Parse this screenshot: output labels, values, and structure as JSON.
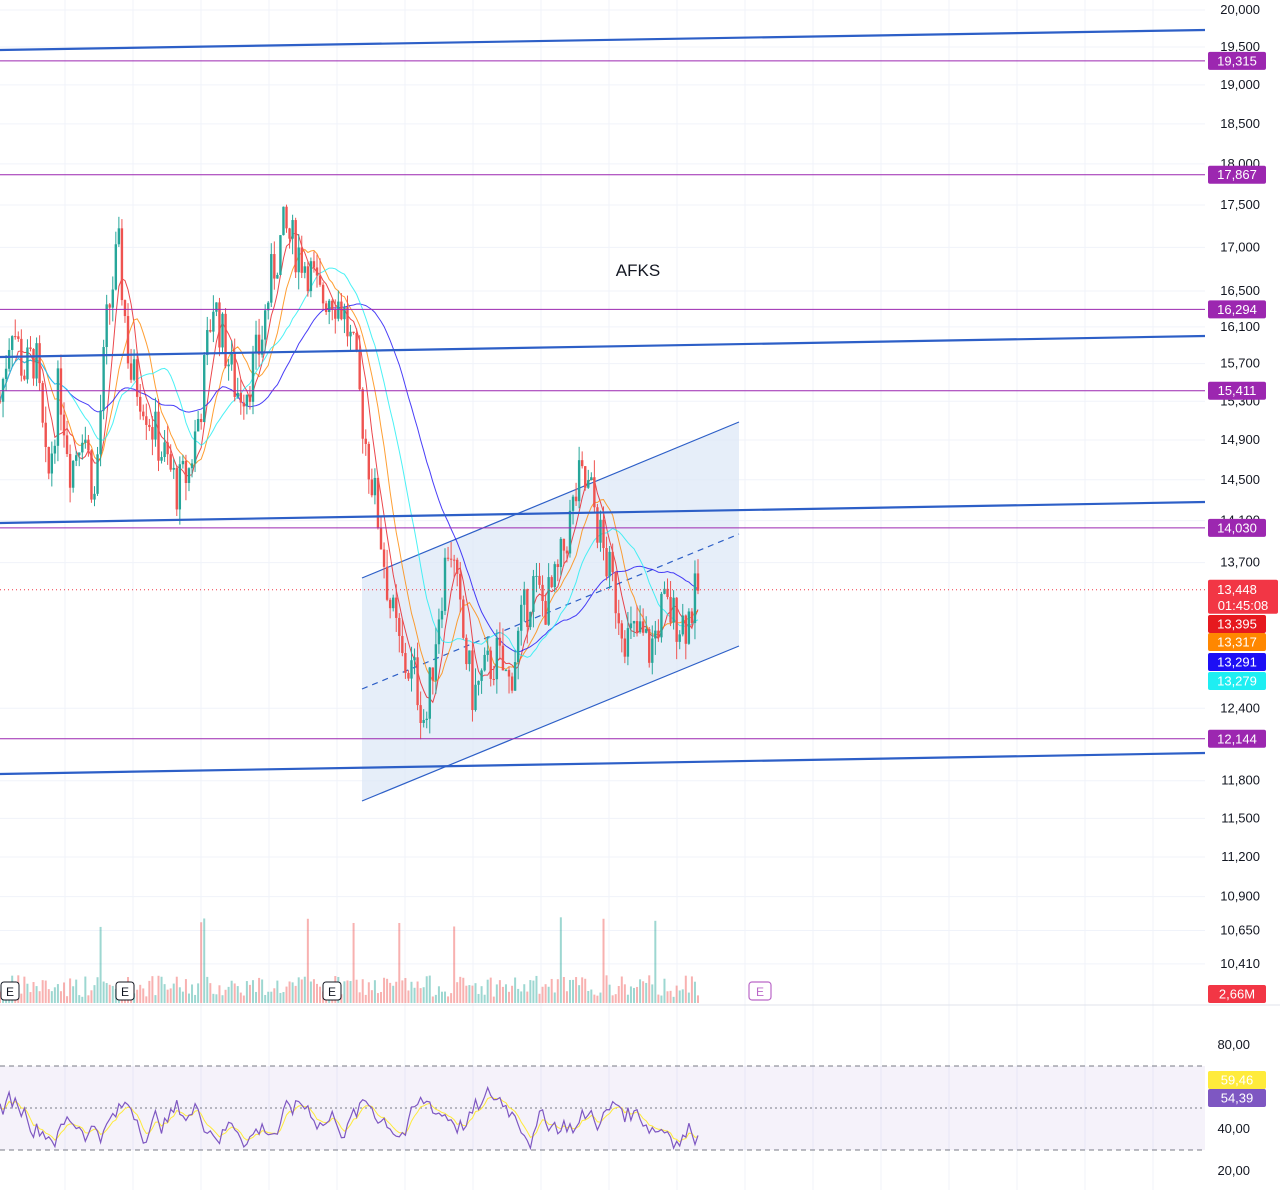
{
  "chart_data": [
    {
      "type": "candlestick",
      "title": "AFKS",
      "price_axis": {
        "scale": "log",
        "ticks": [
          "20,000",
          "19,500",
          "19,000",
          "18,500",
          "18,000",
          "17,500",
          "17,000",
          "16,500",
          "16,100",
          "15,700",
          "15,300",
          "14,900",
          "14,500",
          "14,100",
          "13,700",
          "12,400",
          "11,800",
          "11,500",
          "11,200",
          "10,900",
          "10,650",
          "10,410"
        ],
        "tick_values": [
          20000,
          19500,
          19000,
          18500,
          18000,
          17500,
          17000,
          16500,
          16100,
          15700,
          15300,
          14900,
          14500,
          14100,
          13700,
          12400,
          11800,
          11500,
          11200,
          10900,
          10650,
          10410
        ]
      },
      "price_series_approx": [
        15300,
        16200,
        15600,
        15800,
        14400,
        15500,
        14600,
        15100,
        14300,
        16100,
        17000,
        15600,
        15400,
        15000,
        14700,
        14400,
        14600,
        15300,
        16400,
        15900,
        15400,
        15500,
        15900,
        16700,
        17200,
        17000,
        16800,
        16400,
        16500,
        16300,
        15700,
        14800,
        14100,
        13300,
        12800,
        12700,
        12250,
        13200,
        13950,
        13100,
        12500,
        12700,
        12850,
        12600,
        13100,
        13500,
        13300,
        13500,
        14000,
        14500,
        14350,
        13800,
        13400,
        13000,
        13050,
        12900,
        13300,
        13200,
        13150,
        13448
      ],
      "horizontal_levels": [
        19315,
        17867,
        16294,
        15411,
        14030,
        12144
      ],
      "horizontal_level_labels": [
        "19,315",
        "17,867",
        "16,294",
        "15,411",
        "14,030",
        "12,144"
      ],
      "current_price": {
        "value": 13448,
        "label": "13,448",
        "countdown": "01:45:08"
      },
      "moving_average_values": [
        {
          "value": 13395,
          "label": "13,395",
          "color": "#e6191f"
        },
        {
          "value": 13317,
          "label": "13,317",
          "color": "#ff8700"
        },
        {
          "value": 13291,
          "label": "13,291",
          "color": "#1d0ff5"
        },
        {
          "value": 13279,
          "label": "13,279",
          "color": "#1eeef2"
        }
      ],
      "volume": {
        "last_label": "2,66M",
        "earnings_markers": [
          "E",
          "E",
          "E",
          "E"
        ]
      },
      "colors": {
        "level_line": "#9c27b0",
        "trend_line": "#2d5fc7",
        "channel_fill": "#dbe7f7",
        "up": "#26a69a",
        "down": "#ef5350",
        "price_tag": "#f23645"
      }
    },
    {
      "type": "line",
      "name": "RSI",
      "y_ticks": [
        "80,00",
        "40,00",
        "20,00"
      ],
      "y_tick_values": [
        80,
        40,
        20
      ],
      "band": [
        70,
        30
      ],
      "last_values": [
        {
          "value": 59.46,
          "label": "59,46",
          "color": "#ffeb3b"
        },
        {
          "value": 54.39,
          "label": "54,39",
          "color": "#7e57c2"
        }
      ]
    }
  ]
}
